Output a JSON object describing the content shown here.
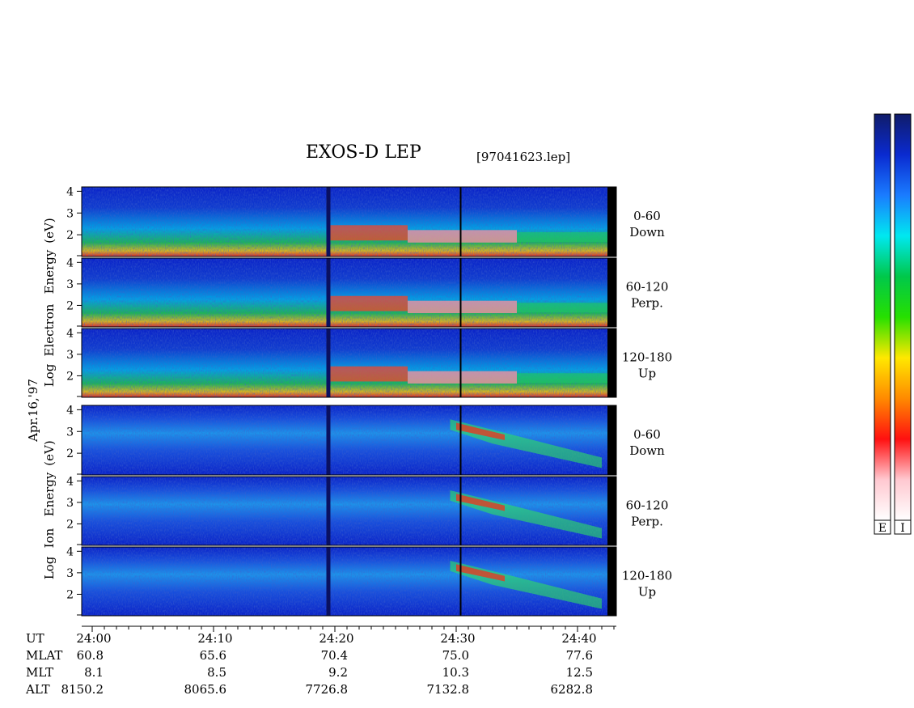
{
  "title": "EXOS-D LEP",
  "file_label": "[97041623.lep]",
  "colors": {
    "panel_bg": "#0a22c8",
    "axis": "#000000"
  },
  "chart_data": {
    "type": "heatmap",
    "date_label": "Apr.16,'97",
    "groups": [
      {
        "ylabel_lines": [
          "Log",
          "Electron",
          "Energy",
          "(eV)"
        ],
        "panels": [
          {
            "angle": "0-60",
            "dir": "Down"
          },
          {
            "angle": "60-120",
            "dir": "Perp."
          },
          {
            "angle": "120-180",
            "dir": "Up"
          }
        ]
      },
      {
        "ylabel_lines": [
          "Log",
          "Ion",
          "Energy",
          "(eV)"
        ],
        "panels": [
          {
            "angle": "0-60",
            "dir": "Down"
          },
          {
            "angle": "60-120",
            "dir": "Perp."
          },
          {
            "angle": "120-180",
            "dir": "Up"
          }
        ]
      }
    ],
    "y_ticks": [
      "4",
      "3",
      "2"
    ],
    "ylim": [
      1,
      4.2
    ],
    "x_ticks": [
      "24:00",
      "24:10",
      "24:20",
      "24:30",
      "24:40"
    ],
    "xlim_minutes": [
      0,
      43
    ],
    "orbit_rows": [
      {
        "label": "UT",
        "values": []
      },
      {
        "label": "MLAT",
        "values": [
          "60.8",
          "65.6",
          "70.4",
          "75.0",
          "77.6"
        ]
      },
      {
        "label": "MLT",
        "values": [
          "8.1",
          "8.5",
          "9.2",
          "10.3",
          "12.5"
        ]
      },
      {
        "label": "ALT",
        "values": [
          "8150.2",
          "8065.6",
          "7726.8",
          "7132.8",
          "6282.8"
        ]
      }
    ],
    "colorbar_labels": [
      "E",
      "I"
    ],
    "colorbar_stops": [
      "#101c6a",
      "#0a2ad0",
      "#1a7cff",
      "#00e8f0",
      "#00c84a",
      "#26e000",
      "#ffe800",
      "#ff8a00",
      "#ff1010",
      "#ffc8d0",
      "#ffffff"
    ]
  }
}
